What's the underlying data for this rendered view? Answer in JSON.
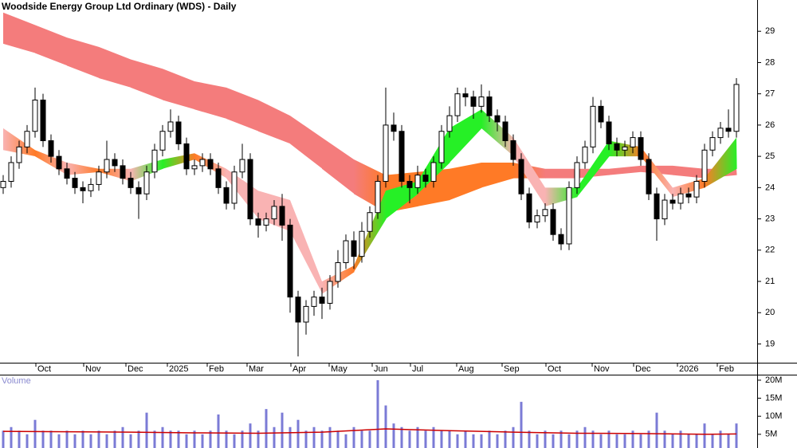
{
  "chart_data": {
    "type": "candlestick",
    "title": "Woodside Energy Group Ltd Ordinary (WDS) - Daily",
    "x": [
      0,
      1,
      2,
      3,
      4,
      5,
      6,
      7,
      8,
      9,
      10,
      11,
      12,
      13,
      14,
      15,
      16,
      17,
      18,
      19,
      20,
      21,
      22,
      23,
      24,
      25,
      26,
      27,
      28,
      29,
      30,
      31,
      32,
      33,
      34,
      35,
      36,
      37,
      38,
      39,
      40,
      41,
      42,
      43,
      44,
      45,
      46,
      47,
      48,
      49,
      50,
      51,
      52,
      53,
      54,
      55,
      56,
      57,
      58,
      59,
      60,
      61,
      62,
      63,
      64,
      65,
      66,
      67,
      68,
      69,
      70,
      71,
      72,
      73,
      74,
      75,
      76,
      77,
      78,
      79,
      80,
      81,
      82,
      83,
      84,
      85,
      86,
      87,
      88,
      89,
      90,
      91,
      92
    ],
    "open": [
      24.0,
      24.2,
      24.8,
      25.3,
      25.8,
      26.8,
      25.5,
      25.0,
      24.6,
      24.3,
      24.0,
      23.9,
      24.1,
      24.5,
      24.9,
      24.7,
      24.3,
      24.0,
      23.8,
      24.5,
      25.2,
      25.8,
      26.1,
      25.4,
      24.6,
      24.7,
      24.9,
      24.6,
      24.0,
      23.5,
      24.5,
      24.9,
      23.0,
      22.8,
      23.0,
      23.4,
      22.8,
      20.5,
      19.7,
      20.2,
      20.5,
      20.3,
      21.0,
      21.6,
      22.3,
      21.8,
      22.6,
      23.2,
      24.2,
      26.0,
      25.8,
      24.2,
      24.0,
      24.4,
      24.2,
      24.8,
      25.8,
      26.3,
      27.0,
      26.9,
      26.6,
      26.9,
      26.3,
      26.1,
      25.5,
      24.9,
      23.8,
      22.9,
      23.1,
      23.3,
      22.5,
      22.2,
      24.0,
      24.8,
      25.3,
      26.6,
      26.1,
      25.4,
      25.2,
      25.3,
      25.6,
      24.9,
      23.8,
      23.0,
      23.6,
      23.5,
      23.8,
      23.7,
      24.2,
      25.2,
      25.6,
      25.9,
      25.8
    ],
    "high": [
      24.4,
      25.0,
      25.5,
      26.0,
      27.2,
      27.0,
      25.7,
      25.2,
      24.8,
      24.5,
      24.2,
      24.3,
      24.7,
      25.5,
      25.1,
      24.9,
      24.5,
      24.2,
      24.7,
      25.4,
      26.0,
      26.5,
      26.3,
      25.6,
      24.9,
      25.1,
      25.1,
      24.8,
      24.2,
      24.7,
      25.4,
      25.1,
      23.2,
      23.2,
      23.6,
      23.8,
      23.0,
      20.7,
      20.4,
      20.7,
      20.8,
      21.2,
      22.0,
      22.5,
      22.6,
      22.9,
      23.4,
      24.4,
      27.2,
      26.4,
      26.0,
      24.4,
      24.7,
      24.6,
      25.0,
      26.0,
      26.6,
      27.2,
      27.2,
      27.1,
      27.3,
      27.1,
      26.5,
      26.3,
      25.7,
      25.1,
      24.0,
      23.3,
      23.5,
      23.5,
      22.7,
      24.2,
      25.0,
      25.5,
      26.9,
      26.8,
      26.3,
      25.6,
      25.5,
      25.8,
      25.8,
      25.1,
      24.0,
      23.8,
      23.8,
      24.0,
      24.0,
      24.4,
      25.4,
      25.8,
      26.1,
      26.5,
      27.5
    ],
    "low": [
      23.8,
      24.0,
      24.6,
      25.1,
      25.6,
      25.3,
      24.8,
      24.4,
      24.1,
      23.8,
      23.5,
      23.7,
      23.9,
      24.3,
      24.5,
      24.1,
      23.8,
      23.0,
      23.6,
      24.3,
      25.0,
      25.6,
      25.2,
      24.4,
      24.4,
      24.5,
      24.4,
      23.8,
      23.3,
      23.3,
      24.3,
      22.8,
      22.4,
      22.6,
      22.8,
      22.3,
      20.0,
      18.6,
      19.3,
      19.9,
      19.8,
      20.1,
      20.8,
      21.4,
      21.4,
      21.6,
      22.4,
      23.0,
      24.0,
      25.5,
      24.0,
      23.5,
      23.8,
      24.0,
      24.0,
      24.6,
      25.6,
      26.1,
      26.6,
      26.2,
      26.4,
      26.1,
      25.8,
      25.3,
      24.7,
      23.6,
      22.7,
      22.7,
      22.9,
      22.3,
      22.0,
      22.0,
      23.8,
      24.6,
      25.1,
      25.9,
      25.2,
      25.0,
      25.0,
      25.1,
      24.7,
      23.6,
      22.3,
      22.8,
      23.3,
      23.3,
      23.5,
      23.5,
      24.0,
      25.0,
      25.4,
      25.6,
      25.6
    ],
    "close": [
      24.2,
      24.8,
      25.3,
      25.8,
      26.8,
      25.5,
      25.0,
      24.6,
      24.3,
      24.0,
      23.9,
      24.1,
      24.5,
      24.9,
      24.7,
      24.3,
      24.0,
      23.8,
      24.5,
      25.2,
      25.8,
      26.1,
      25.4,
      24.6,
      24.7,
      24.9,
      24.6,
      24.0,
      23.5,
      24.5,
      24.9,
      23.0,
      22.8,
      23.0,
      23.4,
      22.8,
      20.5,
      19.7,
      20.2,
      20.5,
      20.3,
      21.0,
      21.6,
      22.3,
      21.8,
      22.6,
      23.2,
      24.2,
      26.0,
      25.8,
      24.2,
      24.0,
      24.4,
      24.2,
      24.8,
      25.8,
      26.3,
      27.0,
      26.9,
      26.6,
      26.9,
      26.3,
      26.1,
      25.5,
      24.9,
      23.8,
      22.9,
      23.1,
      23.3,
      22.5,
      22.2,
      24.0,
      24.8,
      25.3,
      26.6,
      26.1,
      25.4,
      25.2,
      25.3,
      25.6,
      24.9,
      23.8,
      23.0,
      23.6,
      23.5,
      23.8,
      23.7,
      24.2,
      25.2,
      25.6,
      25.9,
      25.8,
      27.3
    ],
    "bands": [
      {
        "x": [
          0,
          4,
          8,
          12,
          16,
          20,
          24,
          28,
          32,
          36,
          40,
          44,
          48,
          52,
          56,
          60,
          64,
          68,
          72,
          76,
          80,
          84,
          88,
          92
        ],
        "upper": [
          29.6,
          29.2,
          28.8,
          28.5,
          28.1,
          27.8,
          27.4,
          27.2,
          26.8,
          26.3,
          25.6,
          24.9,
          24.4,
          24.5,
          24.6,
          24.8,
          24.8,
          24.6,
          24.6,
          24.6,
          24.7,
          24.7,
          24.6,
          24.6
        ],
        "lower": [
          28.6,
          28.3,
          27.9,
          27.5,
          27.2,
          26.8,
          26.5,
          26.2,
          25.8,
          25.4,
          24.6,
          23.8,
          23.2,
          23.4,
          23.6,
          24.0,
          24.3,
          24.3,
          24.3,
          24.4,
          24.5,
          24.4,
          24.3,
          24.4
        ],
        "colors": [
          "#f47c7c",
          "#f47c7c",
          "#f47c7c",
          "#f47c7c",
          "#f47c7c",
          "#f47c7c",
          "#f47c7c",
          "#f47c7c",
          "#f47c7c",
          "#f47c7c",
          "#f47c7c",
          "#f47c7c",
          "#ff7a26",
          "#ff7a26",
          "#ff7a26",
          "#ff7a26",
          "#ff7a26",
          "#f47c7c",
          "#f47c7c",
          "#f47c7c",
          "#f47c7c",
          "#f47c7c",
          "#f47c7c",
          "#f47c7c"
        ]
      },
      {
        "x": [
          0,
          4,
          8,
          12,
          16,
          20,
          24,
          28,
          32,
          36,
          40,
          44,
          48,
          52,
          56,
          60,
          64,
          68,
          72,
          76,
          80,
          84,
          88,
          92
        ],
        "upper": [
          25.9,
          25.2,
          24.8,
          24.6,
          24.6,
          24.9,
          25.1,
          24.6,
          23.9,
          23.6,
          21.0,
          21.5,
          23.9,
          24.2,
          25.9,
          26.5,
          25.6,
          24.0,
          24.0,
          25.5,
          25.3,
          24.0,
          24.3,
          25.6
        ],
        "lower": [
          25.2,
          25.0,
          24.4,
          24.5,
          24.2,
          24.6,
          24.9,
          24.3,
          23.0,
          22.6,
          20.6,
          21.3,
          23.0,
          23.8,
          24.8,
          25.9,
          25.0,
          23.4,
          23.7,
          25.0,
          25.0,
          23.7,
          24.0,
          24.6
        ],
        "colors": [
          "#f9b3b3",
          "#ff7a26",
          "#f9b3b3",
          "#ff7a26",
          "#f9b3b3",
          "#26f026",
          "#ff7a26",
          "#f9b3b3",
          "#f9b3b3",
          "#f9b3b3",
          "#f9b3b3",
          "#ff7a26",
          "#26f026",
          "#26f026",
          "#26f026",
          "#26f026",
          "#f9b3b3",
          "#f9b3b3",
          "#26f026",
          "#26f026",
          "#ff7a26",
          "#f9b3b3",
          "#ff7a26",
          "#26f026"
        ]
      }
    ],
    "xlim": [
      -0.4,
      94.6
    ],
    "xticks": [
      {
        "value": 4.1,
        "label": "Oct"
      },
      {
        "value": 10.1,
        "label": "Nov"
      },
      {
        "value": 15.4,
        "label": "Dec"
      },
      {
        "value": 20.6,
        "label": "2025"
      },
      {
        "value": 25.6,
        "label": "Feb"
      },
      {
        "value": 30.6,
        "label": "Mar"
      },
      {
        "value": 36.1,
        "label": "Apr"
      },
      {
        "value": 40.9,
        "label": "May"
      },
      {
        "value": 46.3,
        "label": "Jun"
      },
      {
        "value": 51.1,
        "label": "Jul"
      },
      {
        "value": 56.9,
        "label": "Aug"
      },
      {
        "value": 62.6,
        "label": "Sep"
      },
      {
        "value": 68.1,
        "label": "Oct"
      },
      {
        "value": 73.9,
        "label": "Nov"
      },
      {
        "value": 79.1,
        "label": "Dec"
      },
      {
        "value": 84.6,
        "label": "2026"
      },
      {
        "value": 89.6,
        "label": "Feb"
      }
    ],
    "ylim": [
      18.4,
      30.0
    ],
    "yticks": [
      19,
      20,
      21,
      22,
      23,
      24,
      25,
      26,
      27,
      28,
      29
    ],
    "volume": {
      "label": "Volume",
      "color": "#7b7bd6",
      "values": [
        6,
        7,
        6,
        5,
        9,
        6,
        6,
        5,
        6,
        5,
        6,
        5,
        6,
        5,
        6,
        7,
        5,
        6,
        11,
        6,
        7,
        6,
        6,
        5,
        6,
        5,
        6,
        10.5,
        6,
        5,
        6,
        8,
        6,
        12,
        7,
        11,
        7,
        9,
        6,
        7,
        6,
        7,
        6,
        5,
        7,
        6,
        6,
        20,
        13,
        8,
        7,
        6,
        7,
        6,
        7,
        6,
        6,
        5,
        6,
        5,
        5,
        6,
        5,
        6,
        7,
        14,
        6,
        5,
        6,
        5,
        6,
        5,
        6,
        7,
        6,
        5,
        6,
        5,
        5,
        6,
        5,
        6,
        11,
        6,
        5,
        6,
        5,
        5,
        8,
        5,
        6,
        5,
        8
      ],
      "ylim": [
        1.2,
        23.3
      ],
      "yticks": [
        {
          "value": 5,
          "label": "5M"
        },
        {
          "value": 10,
          "label": "10M"
        },
        {
          "value": 15,
          "label": "15M"
        },
        {
          "value": 20,
          "label": "20M"
        }
      ],
      "ma": {
        "color": "#cc0000",
        "x": [
          0,
          8,
          16,
          24,
          32,
          40,
          48,
          56,
          64,
          72,
          80,
          88,
          92
        ],
        "values": [
          5.8,
          5.7,
          5.6,
          5.4,
          5.3,
          5.6,
          6.5,
          6.0,
          5.6,
          5.3,
          5.2,
          5.0,
          5.1
        ]
      }
    }
  }
}
